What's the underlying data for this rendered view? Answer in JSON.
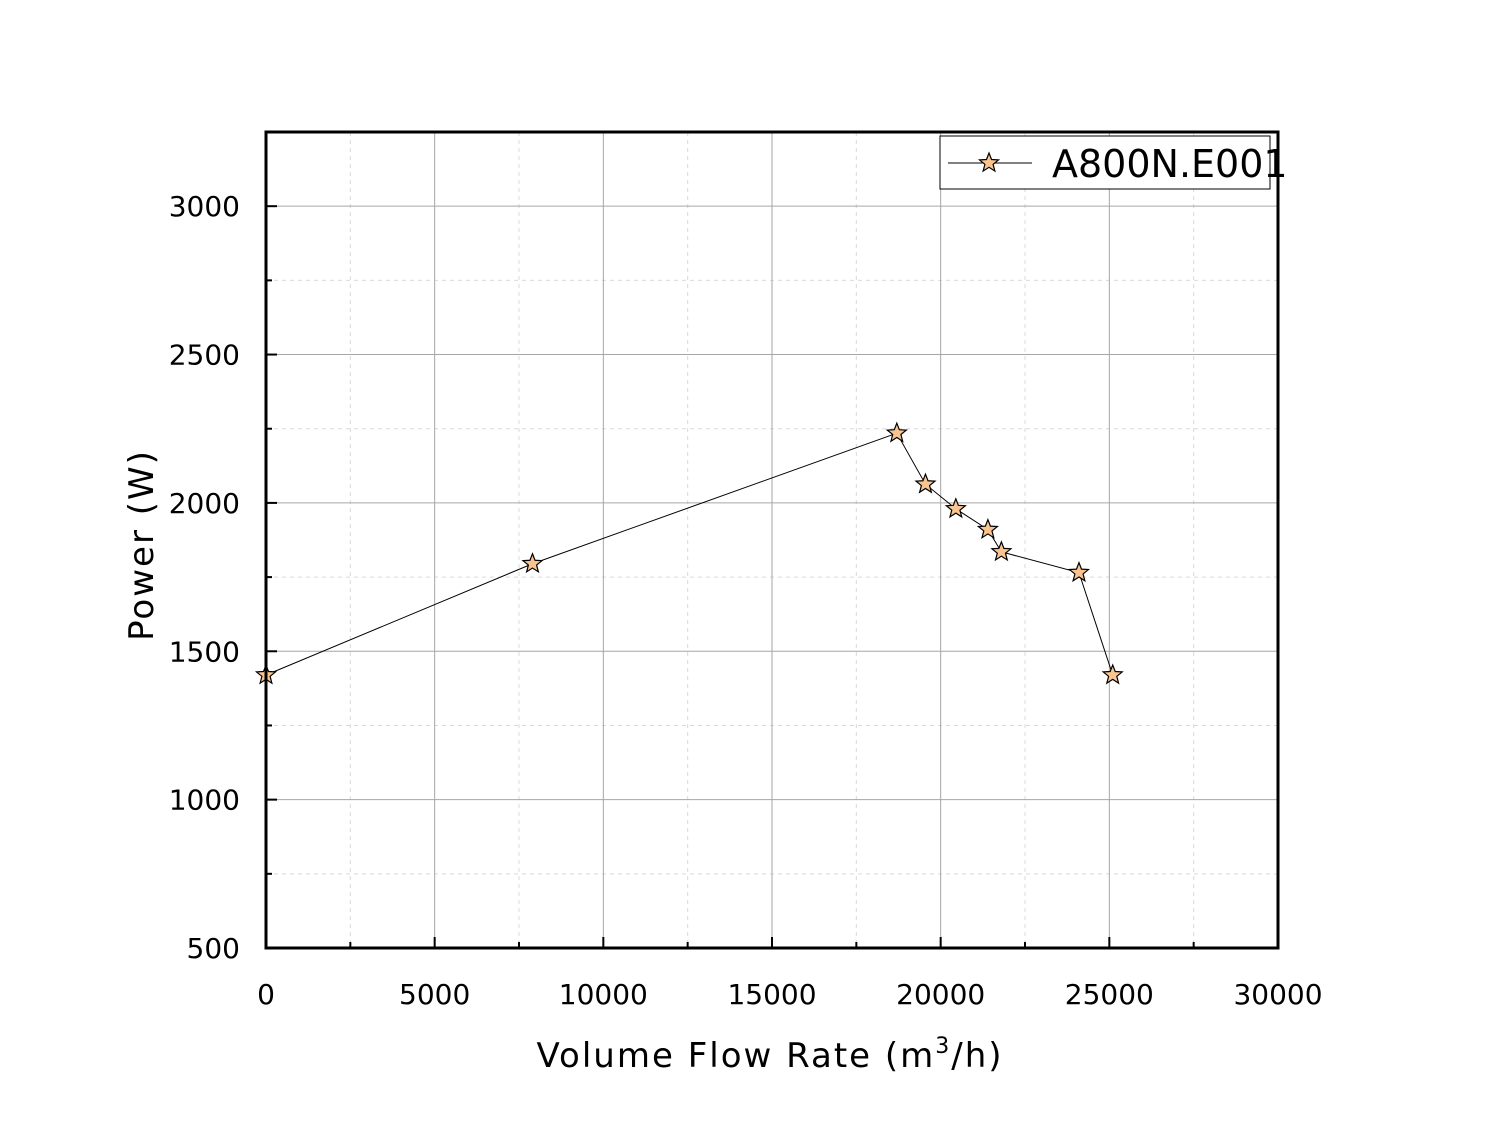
{
  "chart_data": {
    "type": "line",
    "title": "",
    "xlabel": "Volume Flow Rate (m³/h)",
    "xlabel_main": "Volume Flow Rate (m",
    "xlabel_sup": "3",
    "xlabel_end": "/h)",
    "ylabel": "Power (W)",
    "xlim": [
      0,
      30000
    ],
    "ylim": [
      500,
      3250
    ],
    "x_major_ticks": [
      0,
      5000,
      10000,
      15000,
      20000,
      25000,
      30000
    ],
    "x_tick_labels": [
      "0",
      "5000",
      "10000",
      "15000",
      "20000",
      "25000",
      "30000"
    ],
    "x_minor_ticks": [
      2500,
      7500,
      12500,
      17500,
      22500,
      27500
    ],
    "y_major_ticks": [
      500,
      1000,
      1500,
      2000,
      2500,
      3000
    ],
    "y_tick_labels": [
      "500",
      "1000",
      "1500",
      "2000",
      "2500",
      "3000"
    ],
    "y_minor_ticks": [
      750,
      1250,
      1750,
      2250,
      2750
    ],
    "grid": true,
    "legend_position": "top-right",
    "series": [
      {
        "name": "A800N.E001",
        "marker": "star",
        "marker_color": "#F9C48F",
        "line_color": "#000000",
        "x": [
          0,
          7900,
          18700,
          19550,
          20450,
          21400,
          21800,
          24100,
          25100
        ],
        "y": [
          1420,
          1795,
          2235,
          2063,
          1980,
          1910,
          1835,
          1765,
          1420
        ]
      }
    ]
  }
}
